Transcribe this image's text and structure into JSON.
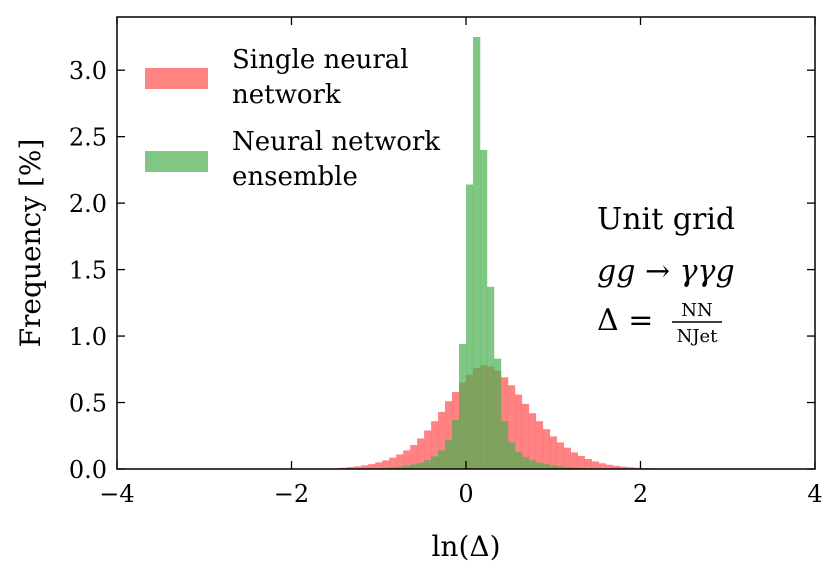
{
  "chart_data": {
    "type": "bar",
    "xlabel": "ln(Δ)",
    "ylabel": "Frequency [%]",
    "xlim": [
      -4,
      4
    ],
    "ylim": [
      0,
      3.4
    ],
    "xticks": [
      -4,
      -2,
      0,
      2,
      4
    ],
    "xtick_labels": [
      "−4",
      "−2",
      "0",
      "2",
      "4"
    ],
    "yticks": [
      0,
      0.5,
      1.0,
      1.5,
      2.0,
      2.5,
      3.0
    ],
    "ytick_labels": [
      "0.0",
      "0.5",
      "1.0",
      "1.5",
      "2.0",
      "2.5",
      "3.0"
    ],
    "bin_width": 0.08,
    "legend_placement": "top-left",
    "grid": false,
    "series": [
      {
        "name": "Single neural network",
        "legend_lines": [
          "Single neural",
          "network"
        ],
        "color": "#ff5a5a",
        "opacity": 0.75,
        "bin_start": -1.6,
        "values": [
          0.003,
          0.006,
          0.01,
          0.015,
          0.02,
          0.028,
          0.037,
          0.05,
          0.065,
          0.085,
          0.11,
          0.14,
          0.18,
          0.23,
          0.29,
          0.36,
          0.43,
          0.51,
          0.58,
          0.65,
          0.71,
          0.76,
          0.78,
          0.77,
          0.74,
          0.69,
          0.63,
          0.56,
          0.49,
          0.42,
          0.36,
          0.3,
          0.245,
          0.2,
          0.16,
          0.125,
          0.098,
          0.075,
          0.057,
          0.043,
          0.032,
          0.024,
          0.018,
          0.013,
          0.009,
          0.007,
          0.005,
          0.004,
          0.003,
          0.002,
          0.002,
          0.001,
          0.001
        ]
      },
      {
        "name": "Neural network ensemble",
        "legend_lines": [
          "Neural network",
          "ensemble"
        ],
        "color": "#4caf50",
        "opacity": 0.7,
        "bin_start": -1.2,
        "values": [
          0.002,
          0.004,
          0.006,
          0.009,
          0.013,
          0.018,
          0.025,
          0.034,
          0.047,
          0.066,
          0.095,
          0.14,
          0.22,
          0.37,
          0.94,
          2.14,
          3.25,
          2.4,
          1.37,
          0.83,
          0.36,
          0.2,
          0.13,
          0.09,
          0.065,
          0.048,
          0.036,
          0.027,
          0.02,
          0.015,
          0.011,
          0.008,
          0.006,
          0.004,
          0.003,
          0.002,
          0.001
        ]
      }
    ],
    "annotations": {
      "line1": "Unit grid",
      "line2": "gg → γγg",
      "line3_lhs": "Δ =",
      "line3_num": "NN",
      "line3_den": "NJet"
    }
  }
}
